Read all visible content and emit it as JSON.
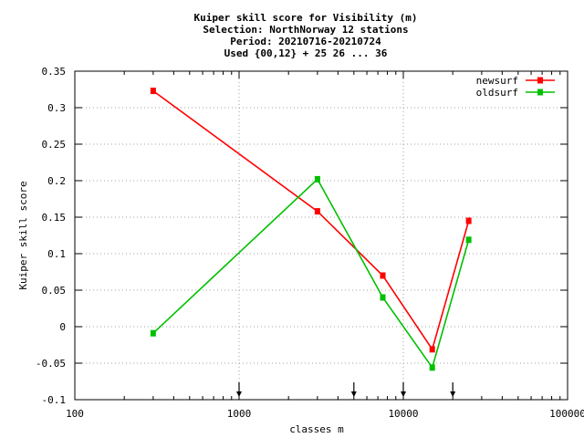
{
  "chart_data": {
    "type": "line",
    "title_lines": [
      "Kuiper skill score  for Visibility (m)",
      "Selection: NorthNorway     12 stations",
      "Period: 20210716-20210724",
      "Used {00,12} + 25 26 ... 36"
    ],
    "xlabel": "classes m",
    "ylabel": "Kuiper skill score",
    "x_scale": "log",
    "xlim": [
      100,
      100000
    ],
    "ylim": [
      -0.1,
      0.35
    ],
    "x_ticks": [
      100,
      1000,
      10000,
      100000
    ],
    "x_tick_labels": [
      "100",
      "1000",
      "10000",
      "100000"
    ],
    "y_ticks": [
      -0.1,
      -0.05,
      0,
      0.05,
      0.1,
      0.15,
      0.2,
      0.25,
      0.3,
      0.35
    ],
    "y_tick_labels": [
      "-0.1",
      "-0.05",
      "0",
      "0.05",
      "0.1",
      "0.15",
      "0.2",
      "0.25",
      "0.3",
      "0.35"
    ],
    "grid": true,
    "legend_position": "top-right",
    "threshold_arrows_x": [
      1000,
      5000,
      10000,
      20000
    ],
    "series": [
      {
        "name": "newsurf",
        "color": "#ff0000",
        "x": [
          300,
          3000,
          7500,
          15000,
          25000
        ],
        "values": [
          0.323,
          0.158,
          0.07,
          -0.031,
          0.145
        ]
      },
      {
        "name": "oldsurf",
        "color": "#00c000",
        "x": [
          300,
          3000,
          7500,
          15000,
          25000
        ],
        "values": [
          -0.009,
          0.202,
          0.04,
          -0.056,
          0.119
        ]
      }
    ]
  }
}
